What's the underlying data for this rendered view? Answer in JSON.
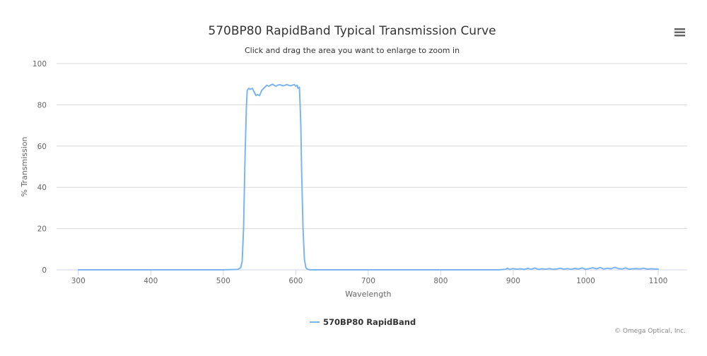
{
  "chart_data": {
    "type": "line",
    "title": "570BP80 RapidBand Typical Transmission Curve",
    "subtitle": "Click and drag the area you want to enlarge to zoom in",
    "xlabel": "Wavelength",
    "ylabel": "% Transmission",
    "xlim": [
      270,
      1140
    ],
    "ylim": [
      0,
      100
    ],
    "xticks": [
      300,
      400,
      500,
      600,
      700,
      800,
      900,
      1000,
      1100
    ],
    "yticks": [
      0,
      20,
      40,
      60,
      80,
      100
    ],
    "grid": true,
    "legend_position": "bottom-center",
    "series": [
      {
        "name": "570BP80 RapidBand",
        "color": "#7cb5ec",
        "x": [
          300,
          400,
          500,
          520,
          524,
          526,
          528,
          530,
          532,
          533,
          535,
          537,
          540,
          543,
          545,
          547,
          550,
          553,
          556,
          560,
          563,
          565,
          568,
          570,
          573,
          575,
          578,
          580,
          583,
          585,
          588,
          590,
          593,
          595,
          598,
          600,
          602,
          603,
          605,
          606,
          607,
          608,
          610,
          612,
          614,
          616,
          620,
          650,
          700,
          800,
          880,
          890,
          892,
          895,
          900,
          905,
          910,
          915,
          920,
          925,
          930,
          935,
          940,
          945,
          950,
          955,
          960,
          965,
          970,
          975,
          980,
          985,
          990,
          995,
          1000,
          1005,
          1010,
          1015,
          1020,
          1025,
          1030,
          1035,
          1040,
          1045,
          1050,
          1055,
          1060,
          1065,
          1070,
          1075,
          1080,
          1085,
          1090,
          1095,
          1100
        ],
        "y": [
          0,
          0,
          0,
          0.2,
          1,
          4,
          20,
          55,
          80,
          87,
          88,
          87.5,
          88,
          86,
          84.5,
          85,
          84.5,
          87,
          88,
          89.5,
          89,
          89.5,
          90,
          89.5,
          89,
          89.5,
          89.8,
          89.5,
          89.2,
          89.5,
          89.8,
          89.5,
          89.2,
          89.5,
          89.8,
          89,
          89.5,
          88,
          88.5,
          80,
          70,
          50,
          20,
          5,
          1,
          0.3,
          0,
          0,
          0,
          0,
          0,
          0.3,
          0.8,
          0.2,
          0.6,
          0.3,
          0.5,
          0.2,
          0.7,
          0.3,
          0.9,
          0.2,
          0.5,
          0.3,
          0.6,
          0.2,
          0.4,
          0.8,
          0.3,
          0.6,
          0.2,
          0.7,
          0.4,
          0.9,
          0.3,
          0.6,
          1.0,
          0.5,
          1.1,
          0.4,
          0.8,
          0.5,
          1.2,
          0.6,
          0.4,
          0.9,
          0.3,
          0.5,
          0.6,
          0.4,
          0.8,
          0.3,
          0.5,
          0.4,
          0.3
        ]
      }
    ]
  },
  "credits": "© Omega Optical, Inc.",
  "menu_icon": "hamburger-menu-icon"
}
